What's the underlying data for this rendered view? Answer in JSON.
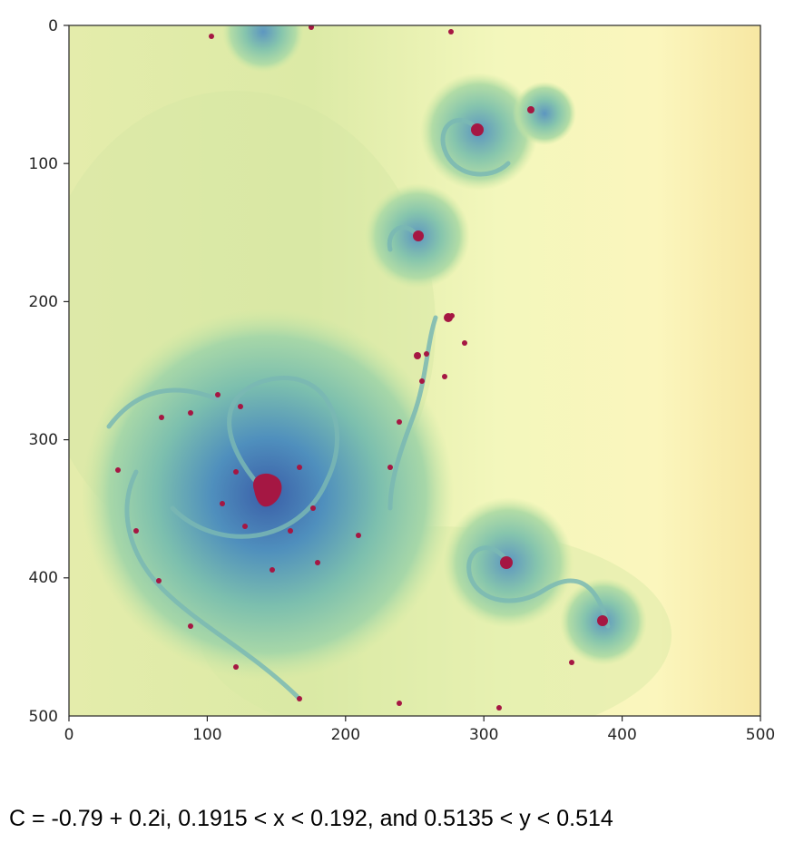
{
  "chart_data": {
    "type": "heatmap",
    "description": "Julia set fractal image",
    "x_ticks": [
      "0",
      "100",
      "200",
      "300",
      "400",
      "500"
    ],
    "y_ticks": [
      "0",
      "100",
      "200",
      "300",
      "400",
      "500"
    ],
    "xlim": [
      0,
      500
    ],
    "ylim": [
      500,
      0
    ],
    "colormap": "Spectral",
    "grid": false
  },
  "caption": "C = -0.79 + 0.2i, 0.1915 < x < 0.192, and 0.5135 < y < 0.514"
}
